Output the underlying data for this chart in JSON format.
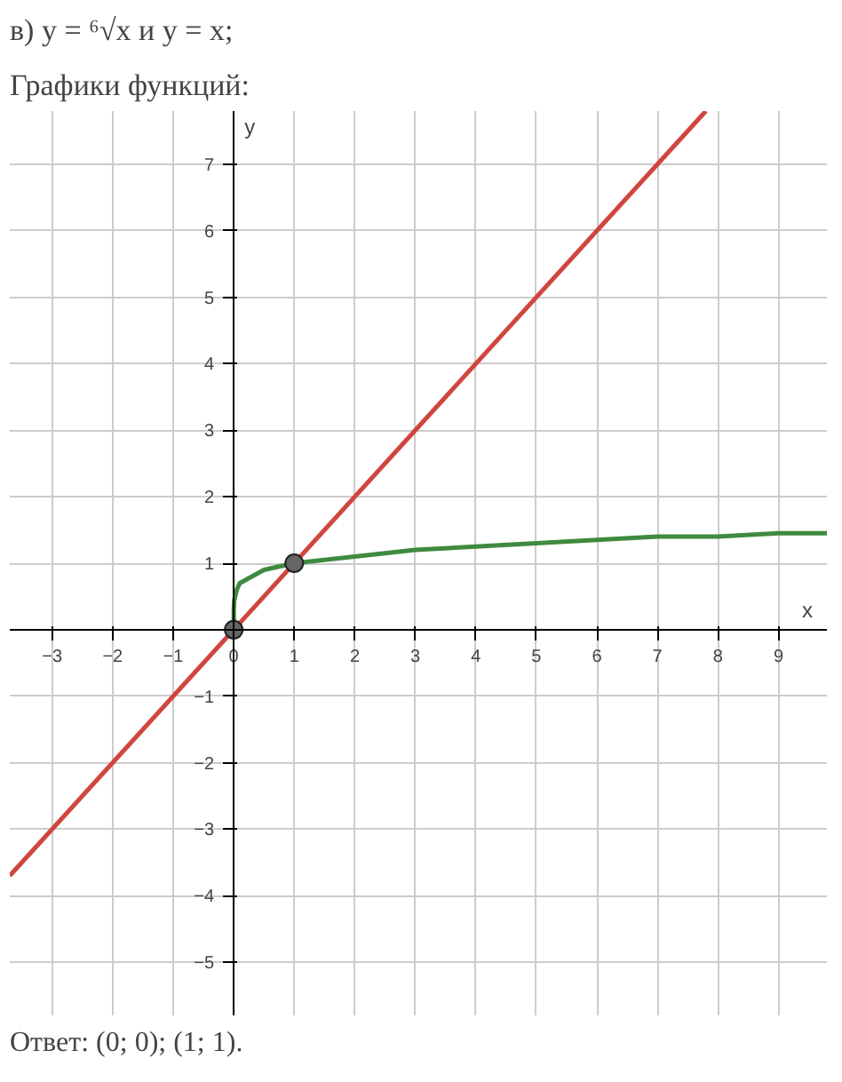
{
  "chart_data": {
    "type": "line",
    "title": "в) y = ⁶√x и y = x;",
    "subtitle": "Графики функций:",
    "xlabel": "x",
    "ylabel": "y",
    "series": [
      {
        "color": "#d0463f",
        "x": [
          -3.7,
          7.8
        ],
        "values": [
          -3.7,
          7.8
        ]
      },
      {
        "color": "#3f8a3f",
        "x": [
          0,
          0.001,
          0.01,
          0.05,
          0.1,
          0.2,
          0.5,
          1,
          2,
          3,
          4,
          5,
          6,
          7,
          8,
          9,
          9.8
        ],
        "values": [
          0,
          0.3,
          0.45,
          0.6,
          0.7,
          0.75,
          0.9,
          1,
          1.1,
          1.2,
          1.25,
          1.3,
          1.35,
          1.4,
          1.4,
          1.45,
          1.45
        ]
      },
      {
        "type": "scatter",
        "color": "#666666",
        "marker": "circle",
        "x": [
          0,
          1
        ],
        "values": [
          0,
          1
        ]
      }
    ],
    "xlim": [
      -3.7,
      9.8
    ],
    "ylim": [
      -5.8,
      7.8
    ],
    "xticks": [
      -3,
      -2,
      -1,
      0,
      1,
      2,
      3,
      4,
      5,
      6,
      7,
      8,
      9
    ],
    "yticks": [
      -5,
      -4,
      -3,
      -2,
      -1,
      1,
      2,
      3,
      4,
      5,
      6,
      7
    ],
    "grid": true,
    "annotations": [
      "Ответ: (0; 0); (1; 1)."
    ]
  }
}
